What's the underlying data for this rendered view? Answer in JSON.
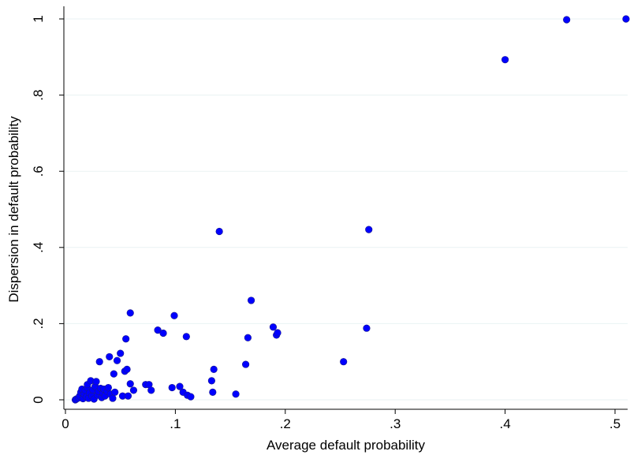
{
  "chart_data": {
    "type": "scatter",
    "title": "",
    "xlabel": "Average default probability",
    "ylabel": "Dispersion in default probability",
    "xlim": [
      0,
      0.51
    ],
    "ylim": [
      0,
      1
    ],
    "x_ticks": [
      0,
      0.1,
      0.2,
      0.3,
      0.4,
      0.5
    ],
    "x_tick_labels": [
      "0",
      ".1",
      ".2",
      ".3",
      ".4",
      ".5"
    ],
    "y_ticks": [
      0,
      0.2,
      0.4,
      0.6,
      0.8,
      1
    ],
    "y_tick_labels": [
      "0",
      ".2",
      ".4",
      ".6",
      ".8",
      "1"
    ],
    "grid": "horizontal",
    "marker_color": "#0000ff",
    "points": [
      [
        0.009,
        0.0
      ],
      [
        0.01,
        0.002
      ],
      [
        0.012,
        0.005
      ],
      [
        0.013,
        0.01
      ],
      [
        0.014,
        0.02
      ],
      [
        0.015,
        0.028
      ],
      [
        0.016,
        0.003
      ],
      [
        0.017,
        0.015
      ],
      [
        0.018,
        0.025
      ],
      [
        0.019,
        0.008
      ],
      [
        0.02,
        0.032
      ],
      [
        0.02,
        0.04
      ],
      [
        0.021,
        0.004
      ],
      [
        0.022,
        0.018
      ],
      [
        0.023,
        0.05
      ],
      [
        0.024,
        0.01
      ],
      [
        0.025,
        0.026
      ],
      [
        0.026,
        0.002
      ],
      [
        0.027,
        0.035
      ],
      [
        0.028,
        0.048
      ],
      [
        0.029,
        0.012
      ],
      [
        0.03,
        0.022
      ],
      [
        0.031,
        0.1
      ],
      [
        0.032,
        0.03
      ],
      [
        0.033,
        0.006
      ],
      [
        0.034,
        0.018
      ],
      [
        0.035,
        0.028
      ],
      [
        0.036,
        0.01
      ],
      [
        0.038,
        0.022
      ],
      [
        0.039,
        0.032
      ],
      [
        0.04,
        0.113
      ],
      [
        0.041,
        0.015
      ],
      [
        0.043,
        0.004
      ],
      [
        0.044,
        0.068
      ],
      [
        0.045,
        0.02
      ],
      [
        0.047,
        0.103
      ],
      [
        0.05,
        0.122
      ],
      [
        0.052,
        0.01
      ],
      [
        0.054,
        0.075
      ],
      [
        0.055,
        0.16
      ],
      [
        0.056,
        0.08
      ],
      [
        0.057,
        0.01
      ],
      [
        0.059,
        0.228
      ],
      [
        0.059,
        0.042
      ],
      [
        0.062,
        0.025
      ],
      [
        0.073,
        0.04
      ],
      [
        0.076,
        0.04
      ],
      [
        0.078,
        0.025
      ],
      [
        0.084,
        0.183
      ],
      [
        0.089,
        0.175
      ],
      [
        0.097,
        0.032
      ],
      [
        0.099,
        0.221
      ],
      [
        0.104,
        0.035
      ],
      [
        0.107,
        0.02
      ],
      [
        0.11,
        0.166
      ],
      [
        0.111,
        0.012
      ],
      [
        0.114,
        0.008
      ],
      [
        0.133,
        0.05
      ],
      [
        0.134,
        0.02
      ],
      [
        0.135,
        0.08
      ],
      [
        0.14,
        0.442
      ],
      [
        0.155,
        0.015
      ],
      [
        0.164,
        0.093
      ],
      [
        0.166,
        0.163
      ],
      [
        0.169,
        0.261
      ],
      [
        0.189,
        0.191
      ],
      [
        0.192,
        0.17
      ],
      [
        0.193,
        0.176
      ],
      [
        0.253,
        0.1
      ],
      [
        0.274,
        0.188
      ],
      [
        0.276,
        0.447
      ],
      [
        0.4,
        0.893
      ],
      [
        0.456,
        0.998
      ],
      [
        0.51,
        1.0
      ]
    ]
  }
}
